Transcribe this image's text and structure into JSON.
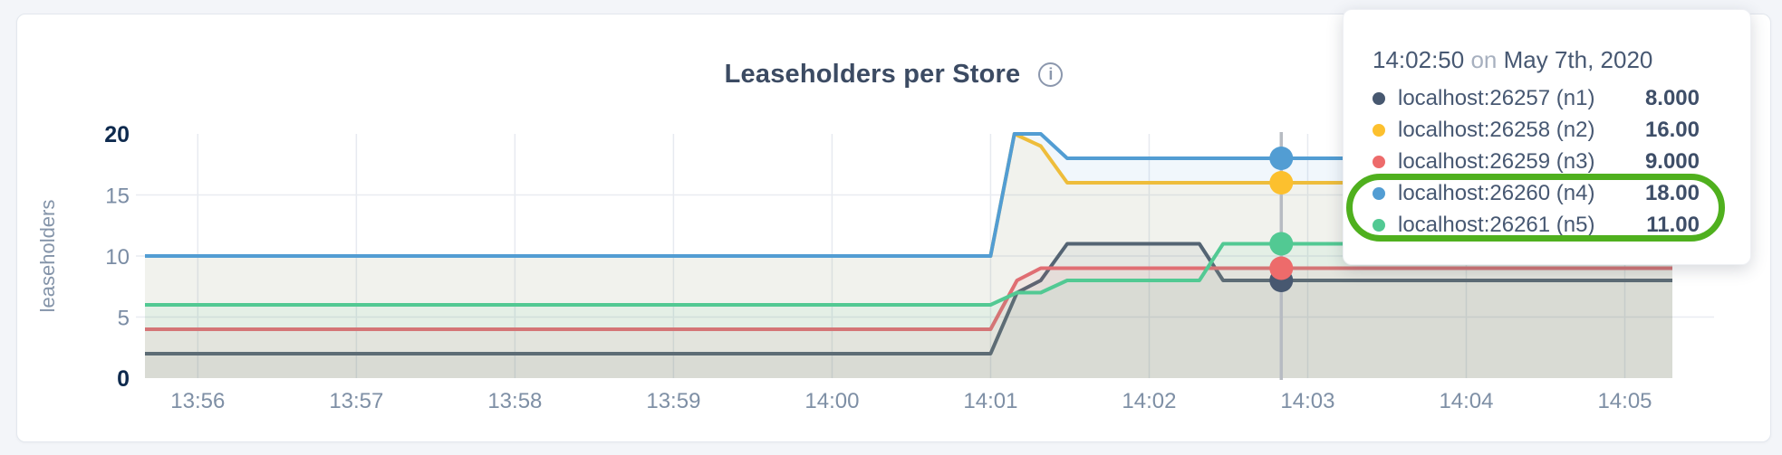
{
  "header": {
    "title": "Leaseholders per Store",
    "info_glyph": "i"
  },
  "tooltip": {
    "time": "14:02:50",
    "on_word": "on",
    "date": "May 7th, 2020",
    "rows": [
      {
        "label": "localhost:26257 (n1)",
        "value": "8.000",
        "color": "#475870",
        "highlighted": false
      },
      {
        "label": "localhost:26258 (n2)",
        "value": "16.00",
        "color": "#fcc02e",
        "highlighted": false
      },
      {
        "label": "localhost:26259 (n3)",
        "value": "9.000",
        "color": "#ed6b6b",
        "highlighted": false
      },
      {
        "label": "localhost:26260 (n4)",
        "value": "18.00",
        "color": "#529dd3",
        "highlighted": true
      },
      {
        "label": "localhost:26261 (n5)",
        "value": "11.00",
        "color": "#52c993",
        "highlighted": true
      }
    ]
  },
  "annotation": {
    "shape": "stadium-ellipse",
    "color": "#4fb01e",
    "highlights": [
      "localhost:26260 (n4)",
      "localhost:26261 (n5)"
    ]
  },
  "chart_data": {
    "type": "line",
    "title": "Leaseholders per Store",
    "xlabel": "",
    "ylabel": "leaseholders",
    "ylim": [
      0,
      20
    ],
    "y_ticks": [
      {
        "value": 0,
        "label": "0",
        "emphasis": true
      },
      {
        "value": 5,
        "label": "5",
        "emphasis": false
      },
      {
        "value": 10,
        "label": "10",
        "emphasis": false
      },
      {
        "value": 15,
        "label": "15",
        "emphasis": false
      },
      {
        "value": 20,
        "label": "20",
        "emphasis": true
      }
    ],
    "y_gridlines": [
      5,
      10,
      15
    ],
    "grid": true,
    "legend_position": "tooltip-top-right",
    "x_unit": "seconds since 13:55:40",
    "x_start_clock": "13:55:40",
    "x_end_clock": "14:05:18",
    "x_domain_seconds": [
      0,
      578
    ],
    "x_ticks": [
      {
        "offset_s": 20,
        "label": "13:56"
      },
      {
        "offset_s": 80,
        "label": "13:57"
      },
      {
        "offset_s": 140,
        "label": "13:58"
      },
      {
        "offset_s": 200,
        "label": "13:59"
      },
      {
        "offset_s": 260,
        "label": "14:00"
      },
      {
        "offset_s": 320,
        "label": "14:01"
      },
      {
        "offset_s": 380,
        "label": "14:02"
      },
      {
        "offset_s": 440,
        "label": "14:03"
      },
      {
        "offset_s": 500,
        "label": "14:04"
      },
      {
        "offset_s": 560,
        "label": "14:05"
      }
    ],
    "hover": {
      "offset_s": 430,
      "clock": "14:02:50"
    },
    "area_fill_opacity": 0.08,
    "series": [
      {
        "id": "n1",
        "name": "localhost:26257 (n1)",
        "color": "#475870",
        "hover_value": 8,
        "points": [
          [
            0,
            2
          ],
          [
            320,
            2
          ],
          [
            330,
            7
          ],
          [
            339,
            8
          ],
          [
            349,
            11
          ],
          [
            399,
            11
          ],
          [
            408,
            8
          ],
          [
            578,
            8
          ]
        ]
      },
      {
        "id": "n2",
        "name": "localhost:26258 (n2)",
        "color": "#fcc02e",
        "hover_value": 16,
        "points": [
          [
            0,
            10
          ],
          [
            320,
            10
          ],
          [
            329,
            20
          ],
          [
            339,
            19
          ],
          [
            349,
            16
          ],
          [
            578,
            16
          ]
        ]
      },
      {
        "id": "n3",
        "name": "localhost:26259 (n3)",
        "color": "#ed6b6b",
        "hover_value": 9,
        "points": [
          [
            0,
            4
          ],
          [
            320,
            4
          ],
          [
            330,
            8
          ],
          [
            339,
            9
          ],
          [
            578,
            9
          ]
        ]
      },
      {
        "id": "n4",
        "name": "localhost:26260 (n4)",
        "color": "#529dd3",
        "hover_value": 18,
        "points": [
          [
            0,
            10
          ],
          [
            320,
            10
          ],
          [
            329,
            20
          ],
          [
            339,
            20
          ],
          [
            349,
            18
          ],
          [
            578,
            18
          ]
        ]
      },
      {
        "id": "n5",
        "name": "localhost:26261 (n5)",
        "color": "#52c993",
        "hover_value": 11,
        "points": [
          [
            0,
            6
          ],
          [
            320,
            6
          ],
          [
            330,
            7
          ],
          [
            339,
            7
          ],
          [
            349,
            8
          ],
          [
            399,
            8
          ],
          [
            408,
            11
          ],
          [
            578,
            11
          ]
        ]
      }
    ]
  }
}
